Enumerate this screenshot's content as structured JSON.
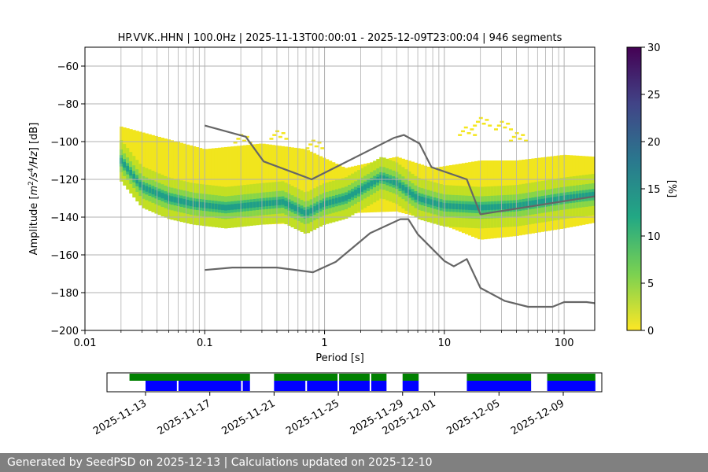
{
  "chart_data": [
    {
      "type": "heatmap",
      "title": "HP.VVK..HHN | 100.0Hz | 2025-11-13T00:00:01 - 2025-12-09T23:00:04 | 946 segments",
      "xlabel": "Period [s]",
      "ylabel": "Amplitude [m²/s⁴/Hz] [dB]",
      "x_scale": "log",
      "xlim": [
        0.01,
        180
      ],
      "ylim": [
        -200,
        -50
      ],
      "x_ticks": [
        "0.01",
        "0.1",
        "1",
        "10",
        "100"
      ],
      "y_ticks": [
        "−60",
        "−80",
        "−100",
        "−120",
        "−140",
        "−160",
        "−180",
        "−200"
      ],
      "y_tick_values": [
        -60,
        -80,
        -100,
        -120,
        -140,
        -160,
        -180,
        -200
      ],
      "grid": true,
      "colorbar": {
        "label": "[%]",
        "range": [
          0,
          30
        ],
        "ticks": [
          "0",
          "5",
          "10",
          "15",
          "20",
          "25",
          "30"
        ],
        "colormap": "viridis_r"
      },
      "mode_curve": [
        {
          "x": 0.02,
          "y": -110
        },
        {
          "x": 0.03,
          "y": -124
        },
        {
          "x": 0.05,
          "y": -130
        },
        {
          "x": 0.08,
          "y": -133
        },
        {
          "x": 0.15,
          "y": -135
        },
        {
          "x": 0.3,
          "y": -133
        },
        {
          "x": 0.45,
          "y": -132
        },
        {
          "x": 0.7,
          "y": -138
        },
        {
          "x": 1.0,
          "y": -133
        },
        {
          "x": 1.5,
          "y": -130
        },
        {
          "x": 2.2,
          "y": -124
        },
        {
          "x": 3.0,
          "y": -119
        },
        {
          "x": 4.0,
          "y": -122
        },
        {
          "x": 6.0,
          "y": -130
        },
        {
          "x": 10,
          "y": -134
        },
        {
          "x": 20,
          "y": -135
        },
        {
          "x": 40,
          "y": -134
        },
        {
          "x": 100,
          "y": -130
        },
        {
          "x": 180,
          "y": -128
        }
      ],
      "percentile_low": [
        {
          "x": 0.02,
          "y": -120
        },
        {
          "x": 0.1,
          "y": -141
        },
        {
          "x": 0.3,
          "y": -144
        },
        {
          "x": 0.7,
          "y": -143
        },
        {
          "x": 1.5,
          "y": -138
        },
        {
          "x": 4.0,
          "y": -137
        },
        {
          "x": 8.0,
          "y": -142
        },
        {
          "x": 20,
          "y": -152
        },
        {
          "x": 40,
          "y": -150
        },
        {
          "x": 100,
          "y": -146
        },
        {
          "x": 180,
          "y": -143
        }
      ],
      "percentile_high": [
        {
          "x": 0.02,
          "y": -92
        },
        {
          "x": 0.1,
          "y": -104
        },
        {
          "x": 0.3,
          "y": -101
        },
        {
          "x": 0.7,
          "y": -104
        },
        {
          "x": 1.5,
          "y": -114
        },
        {
          "x": 4.0,
          "y": -108
        },
        {
          "x": 8.0,
          "y": -114
        },
        {
          "x": 20,
          "y": -110
        },
        {
          "x": 40,
          "y": -110
        },
        {
          "x": 100,
          "y": -107
        },
        {
          "x": 180,
          "y": -108
        }
      ],
      "scatter_band": [
        {
          "x": 0.2,
          "y": -98
        },
        {
          "x": 0.4,
          "y": -96
        },
        {
          "x": 0.8,
          "y": -101
        },
        {
          "x": 15,
          "y": -94
        },
        {
          "x": 20,
          "y": -89
        },
        {
          "x": 30,
          "y": -91
        },
        {
          "x": 40,
          "y": -97
        }
      ],
      "series": [
        {
          "x": [
            0.1,
            0.22,
            0.31,
            0.78,
            3.8,
            4.6,
            6.2,
            7.8,
            15.4,
            20,
            180
          ],
          "y": [
            -91.5,
            -97.4,
            -110.5,
            -120,
            -98,
            -96.5,
            -101,
            -113.5,
            -120,
            -138.5,
            -129
          ]
        },
        {
          "x": [
            0.1,
            0.17,
            0.4,
            0.8,
            1.24,
            2.4,
            4.3,
            5.0,
            6.0,
            10,
            12,
            15.4,
            20,
            32,
            50,
            80,
            100,
            154,
            180
          ],
          "y": [
            -168,
            -166.7,
            -166.7,
            -169.2,
            -163.7,
            -148.5,
            -141.1,
            -141.1,
            -149.1,
            -163.2,
            -166.1,
            -162.2,
            -177.5,
            -184.4,
            -187.5,
            -187.5,
            -185,
            -185,
            -185.6
          ]
        }
      ]
    },
    {
      "type": "timeline",
      "x_ticks": [
        "2025-11-13",
        "2025-11-17",
        "2025-11-21",
        "2025-11-25",
        "2025-11-29",
        "2025-12-01",
        "2025-12-05",
        "2025-12-09"
      ],
      "x_tick_days": [
        1,
        5,
        9,
        13,
        17,
        19,
        23,
        27
      ],
      "xlim_days": [
        -1.4,
        29.4
      ],
      "green_spans": [
        [
          0,
          7.5
        ],
        [
          9,
          12.95
        ],
        [
          13.05,
          14.95
        ],
        [
          15.05,
          16
        ],
        [
          17,
          18
        ],
        [
          21,
          25
        ],
        [
          26,
          29
        ]
      ],
      "blue_spans": [
        [
          1,
          2.95
        ],
        [
          3.05,
          6.95
        ],
        [
          7.05,
          7.5
        ],
        [
          9,
          10.95
        ],
        [
          11.05,
          12.95
        ],
        [
          13.05,
          14.95
        ],
        [
          15.05,
          16
        ],
        [
          17,
          18
        ],
        [
          21,
          25
        ],
        [
          26,
          29
        ]
      ],
      "colors": {
        "green": "#008000",
        "blue": "#0000ff"
      }
    }
  ],
  "footer_text": "Generated by SeedPSD on 2025-12-13 | Calculations updated on 2025-12-10"
}
